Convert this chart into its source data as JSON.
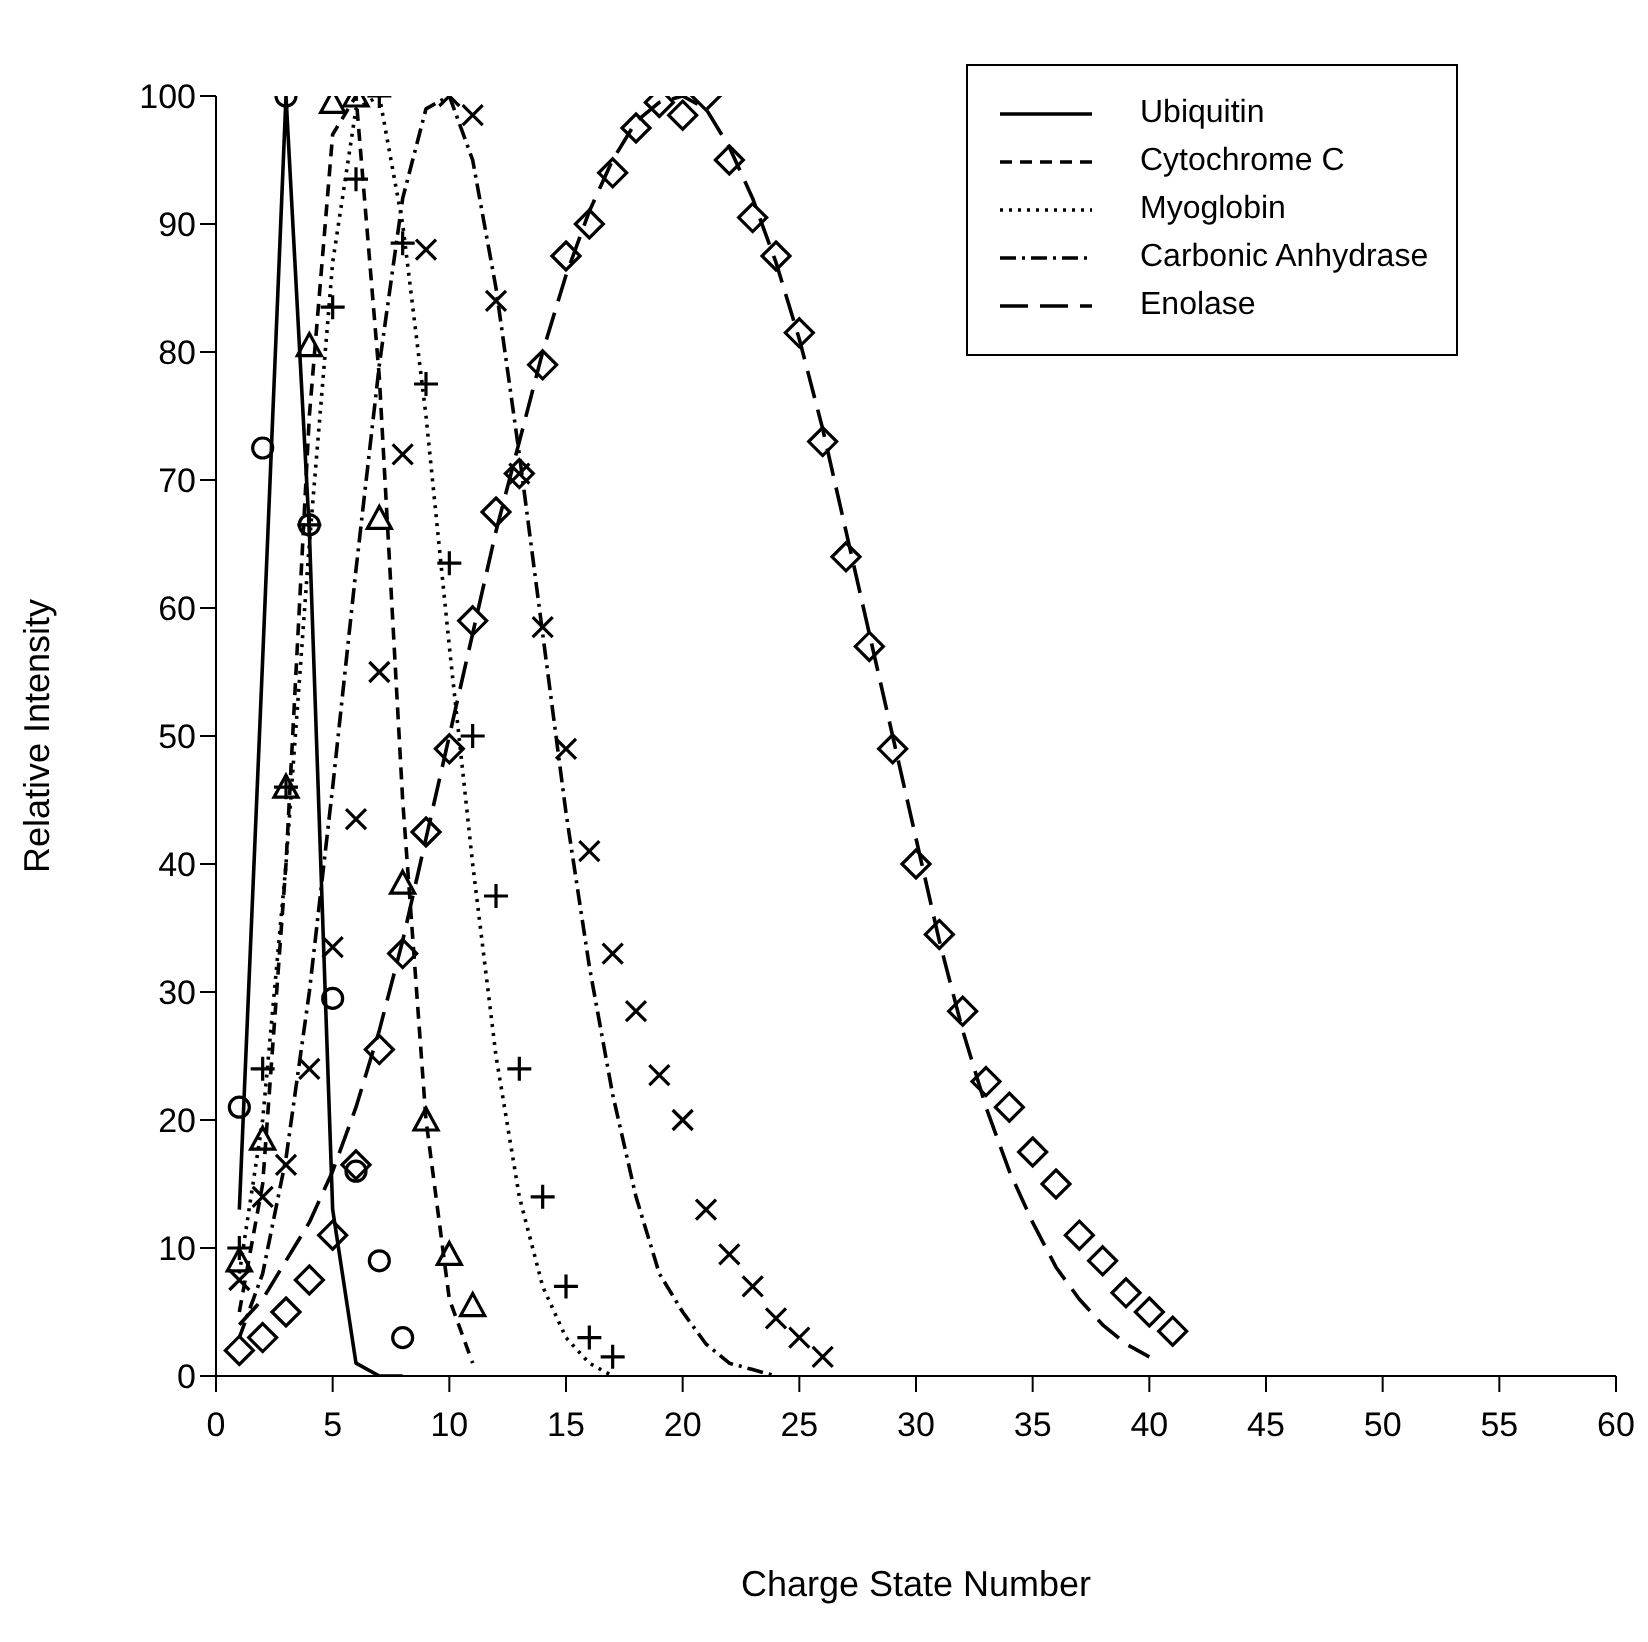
{
  "chart_data": {
    "type": "line",
    "xlabel": "Charge State Number",
    "ylabel": "Relative Intensity",
    "xlim": [
      0,
      60
    ],
    "ylim": [
      0,
      100
    ],
    "xticks": [
      0,
      5,
      10,
      15,
      20,
      25,
      30,
      35,
      40,
      45,
      50,
      55,
      60
    ],
    "yticks": [
      0,
      10,
      20,
      30,
      40,
      50,
      60,
      70,
      80,
      90,
      100
    ],
    "legend": "top right",
    "series": [
      {
        "name": "Ubiquitin",
        "color": "#000000",
        "line_style": "solid",
        "marker": "none",
        "x": [
          1,
          2,
          3,
          4,
          5,
          6,
          7,
          8
        ],
        "values": [
          13,
          56,
          100,
          66,
          13,
          1,
          0,
          0
        ]
      },
      {
        "name": "Cytochrome C",
        "color": "#000000",
        "line_style": "dashed",
        "marker": "none",
        "x": [
          1,
          2,
          3,
          4,
          5,
          6,
          7,
          8,
          9,
          10,
          11
        ],
        "values": [
          5,
          15,
          40,
          75,
          97,
          100,
          78,
          45,
          20,
          6,
          1
        ]
      },
      {
        "name": "Myoglobin",
        "color": "#000000",
        "line_style": "dotted",
        "marker": "none",
        "x": [
          1,
          2,
          3,
          4,
          5,
          6,
          7,
          8,
          9,
          10,
          11,
          12,
          13,
          14,
          15,
          16,
          17
        ],
        "values": [
          8,
          20,
          40,
          65,
          87,
          99,
          100,
          90,
          75,
          57,
          40,
          25,
          14,
          7,
          3,
          1,
          0
        ]
      },
      {
        "name": "Carbonic Anhydrase",
        "color": "#000000",
        "line_style": "dashdot",
        "marker": "none",
        "x": [
          1,
          2,
          3,
          4,
          5,
          6,
          7,
          8,
          9,
          10,
          11,
          12,
          13,
          14,
          15,
          16,
          17,
          18,
          19,
          20,
          21,
          22,
          23,
          24
        ],
        "values": [
          3,
          8,
          17,
          30,
          46,
          63,
          79,
          92,
          99,
          100,
          95,
          85,
          72,
          58,
          44,
          32,
          22,
          14,
          8,
          5,
          2.5,
          1,
          0.5,
          0
        ]
      },
      {
        "name": "Enolase",
        "color": "#000000",
        "line_style": "longdashed",
        "marker": "none",
        "x": [
          1,
          2,
          3,
          4,
          5,
          6,
          7,
          8,
          9,
          10,
          11,
          12,
          13,
          14,
          15,
          16,
          17,
          18,
          19,
          20,
          21,
          22,
          23,
          24,
          25,
          26,
          27,
          28,
          29,
          30,
          31,
          32,
          33,
          34,
          35,
          36,
          37,
          38,
          39,
          40
        ],
        "values": [
          4,
          6,
          9,
          12,
          16,
          21,
          27,
          34,
          42,
          50,
          58,
          66,
          73,
          80,
          86,
          91,
          95,
          98,
          99.5,
          100,
          99,
          96,
          92,
          87,
          81,
          74,
          66,
          58,
          50,
          42,
          34,
          27,
          21,
          16,
          12,
          8.5,
          6,
          4,
          2.5,
          1.5
        ]
      },
      {
        "type": "scatter",
        "color": "#000000",
        "marker": "circle",
        "x": [
          1,
          2,
          3,
          4,
          5,
          6,
          7,
          8
        ],
        "values": [
          21,
          72.5,
          100,
          66.5,
          29.5,
          16,
          9,
          3
        ]
      },
      {
        "type": "scatter",
        "color": "#000000",
        "marker": "triangle",
        "x": [
          1,
          2,
          3,
          4,
          5,
          6,
          7,
          8,
          9,
          10,
          11
        ],
        "values": [
          9,
          18.5,
          46,
          80.5,
          99.5,
          100,
          67,
          38.5,
          20,
          9.5,
          5.5
        ]
      },
      {
        "type": "scatter",
        "color": "#000000",
        "marker": "cross",
        "x": [
          1,
          2,
          3,
          4,
          5,
          6,
          7,
          8,
          9,
          10,
          11,
          12,
          13,
          14,
          15,
          16,
          17
        ],
        "values": [
          10,
          24,
          46,
          66.5,
          83.5,
          93.5,
          100,
          88.5,
          77.5,
          63.5,
          50,
          37.5,
          24,
          14,
          7,
          3,
          1.5
        ]
      },
      {
        "type": "scatter",
        "color": "#000000",
        "marker": "x",
        "x": [
          1,
          2,
          3,
          4,
          5,
          6,
          7,
          8,
          9,
          10,
          11,
          12,
          13,
          14,
          15,
          16,
          17,
          18,
          19,
          20,
          21,
          22,
          23,
          24,
          25,
          26
        ],
        "values": [
          7.5,
          14,
          16.5,
          24,
          33.5,
          43.5,
          55,
          72,
          88,
          100,
          98.5,
          84,
          70.5,
          58.5,
          49,
          41,
          33,
          28.5,
          23.5,
          20,
          13,
          9.5,
          7,
          4.5,
          3,
          1.5
        ]
      },
      {
        "type": "scatter",
        "color": "#000000",
        "marker": "diamond",
        "x": [
          1,
          2,
          3,
          4,
          5,
          6,
          7,
          8,
          9,
          10,
          11,
          12,
          13,
          14,
          15,
          16,
          17,
          18,
          19,
          20,
          21,
          22,
          23,
          24,
          25,
          26,
          27,
          28,
          29,
          30,
          31,
          32,
          33,
          34,
          35,
          36,
          37,
          38,
          39,
          40,
          41
        ],
        "values": [
          2,
          3,
          5,
          7.5,
          11,
          16.5,
          25.5,
          33,
          42.5,
          49,
          59,
          67.5,
          70.5,
          79,
          87.5,
          90,
          94,
          97.5,
          99.5,
          98.5,
          100,
          95,
          90.5,
          87.5,
          81.5,
          73,
          64,
          57,
          49,
          40,
          34.5,
          28.5,
          23,
          21,
          17.5,
          15,
          11,
          9,
          6.5,
          5,
          3.5
        ]
      }
    ]
  }
}
